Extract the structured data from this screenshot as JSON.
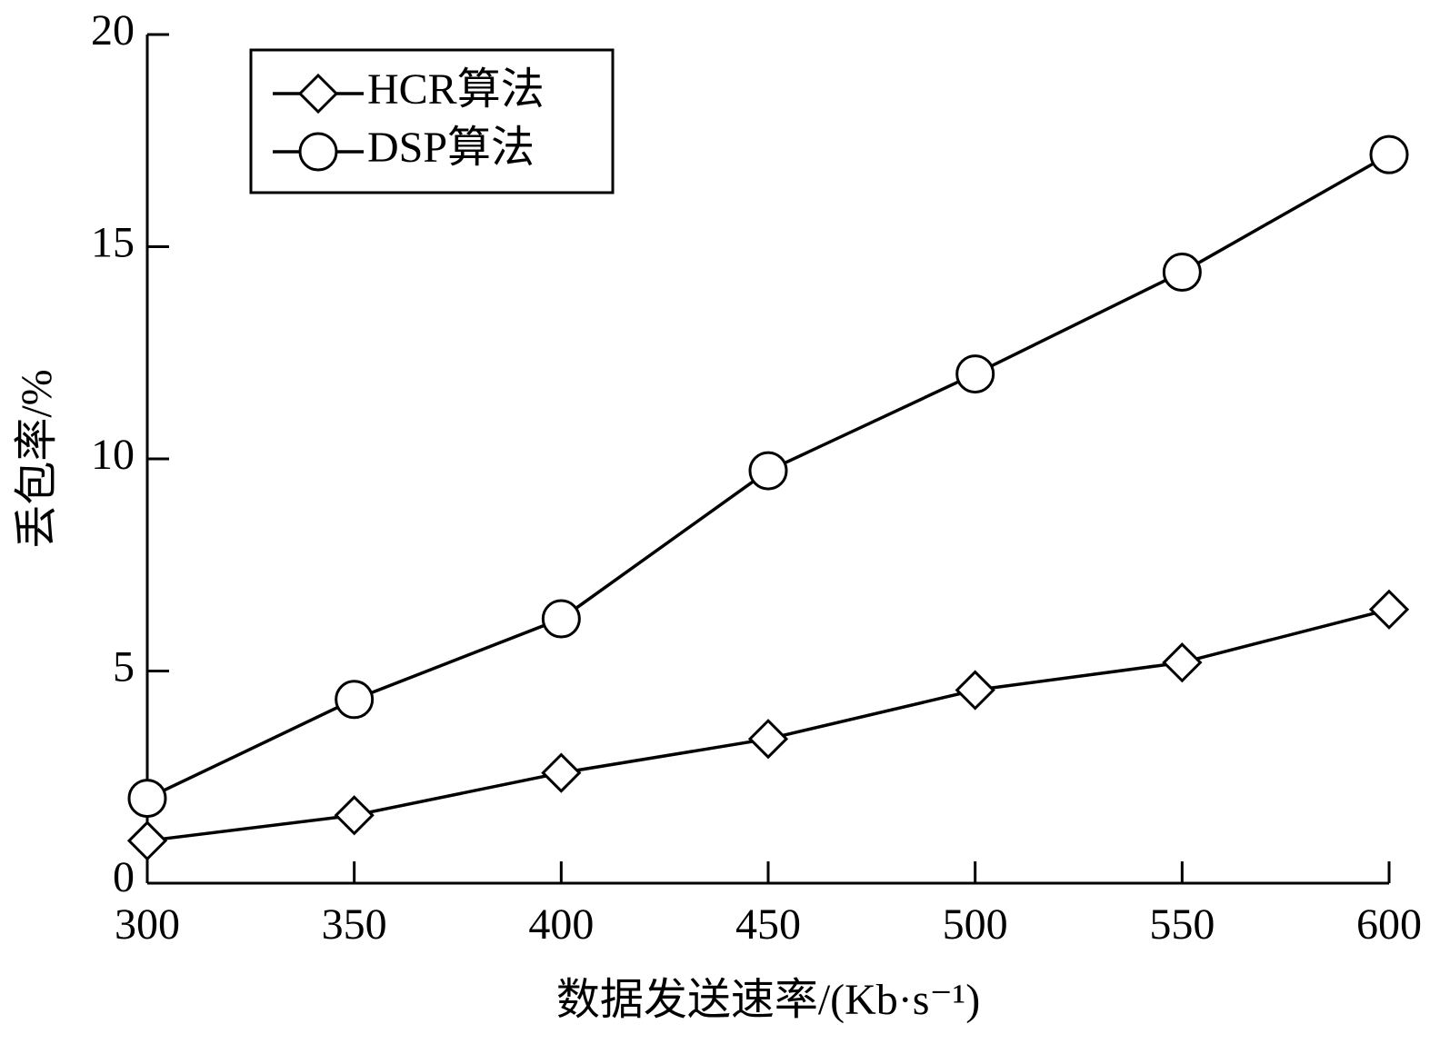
{
  "chart_data": {
    "type": "line",
    "x": [
      300,
      350,
      400,
      450,
      500,
      550,
      600
    ],
    "series": [
      {
        "name": "HCR算法",
        "color": "#000000",
        "marker": "diamond",
        "values": [
          1.0,
          1.6,
          2.6,
          3.4,
          4.55,
          5.2,
          6.45
        ]
      },
      {
        "name": "DSP算法",
        "color": "#000000",
        "marker": "circle",
        "values": [
          2.0,
          4.33,
          6.23,
          9.72,
          12.0,
          14.4,
          17.17
        ]
      }
    ],
    "xlabel": "数据发送速率/(Kb·s⁻¹)",
    "ylabel": "丢包率/%",
    "xlim": [
      300,
      600
    ],
    "xticks": [
      300,
      350,
      400,
      450,
      500,
      550,
      600
    ],
    "ylim": [
      0,
      20
    ],
    "yticks": [
      0,
      5,
      10,
      15,
      20
    ],
    "grid": false,
    "legend": "upper left"
  }
}
